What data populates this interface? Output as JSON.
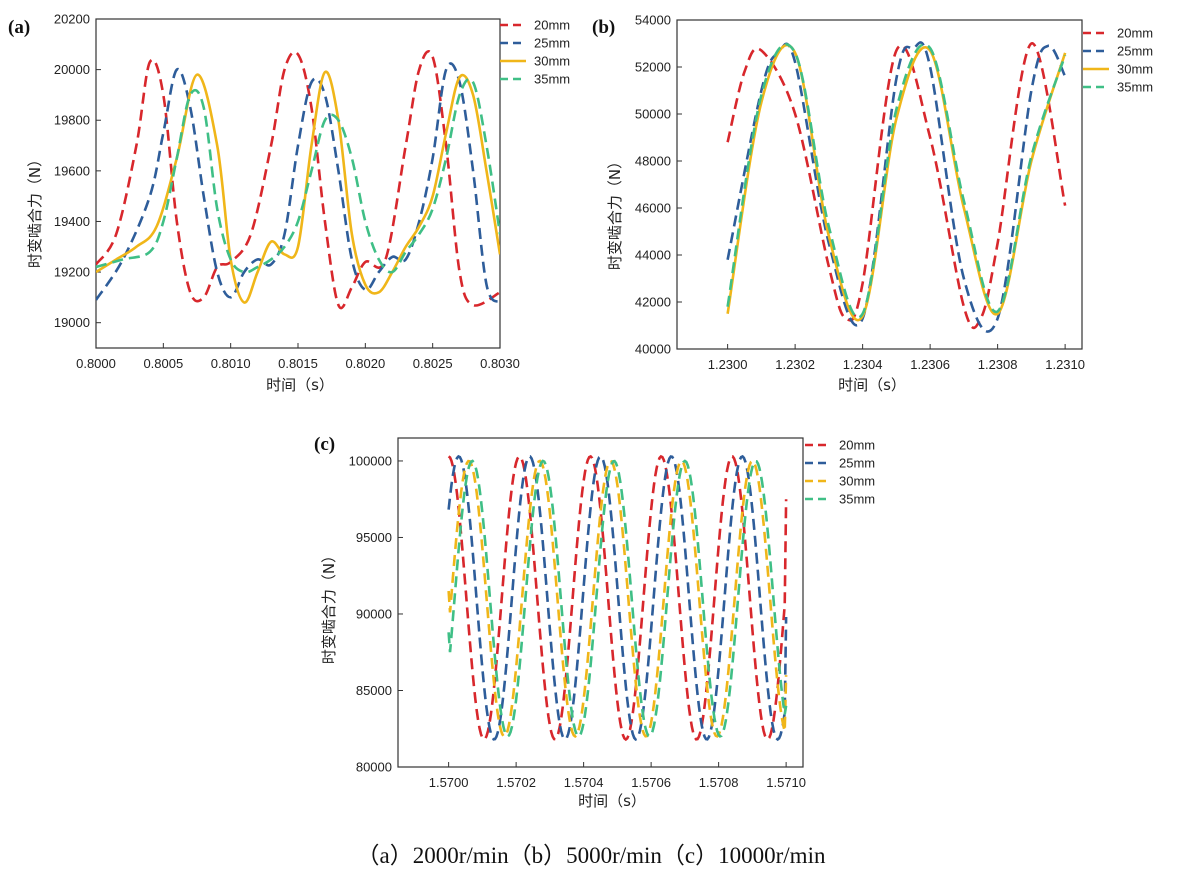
{
  "caption": "（a）2000r/min（b）5000r/min（c）10000r/min",
  "colors": {
    "20mm": "#d8272c",
    "25mm": "#2e5d9a",
    "30mm": "#f0b619",
    "35mm": "#3fbf86"
  },
  "chart_data": [
    {
      "type": "line",
      "panel_label": "(a)",
      "xlabel": "时间（s）",
      "ylabel": "时变啮合力（N）",
      "xlim": [
        0.8,
        0.803
      ],
      "ylim": [
        18900,
        20200
      ],
      "xticks": [
        "0.8000",
        "0.8005",
        "0.8010",
        "0.8015",
        "0.8020",
        "0.8025",
        "0.8030"
      ],
      "yticks": [
        "19000",
        "19200",
        "19400",
        "19600",
        "19800",
        "20000",
        "20200"
      ],
      "legend": [
        "20mm",
        "25mm",
        "30mm",
        "35mm"
      ],
      "series": [
        {
          "name": "20mm",
          "style": "dashed",
          "x": [
            0.8,
            0.80015,
            0.8003,
            0.8004,
            0.8005,
            0.8006,
            0.8007,
            0.8008,
            0.8009,
            0.801,
            0.80115,
            0.8013,
            0.8014,
            0.8015,
            0.8016,
            0.8017,
            0.8018,
            0.8019,
            0.802,
            0.80215,
            0.8023,
            0.8024,
            0.8025,
            0.8026,
            0.8027,
            0.8028,
            0.803
          ],
          "y": [
            19230,
            19350,
            19700,
            20030,
            19900,
            19400,
            19120,
            19100,
            19220,
            19240,
            19350,
            19700,
            20000,
            20060,
            19850,
            19400,
            19070,
            19140,
            19240,
            19250,
            19700,
            20000,
            20050,
            19700,
            19200,
            19070,
            19120
          ]
        },
        {
          "name": "25mm",
          "style": "dashed",
          "x": [
            0.8,
            0.8002,
            0.8004,
            0.8005,
            0.8006,
            0.8007,
            0.8008,
            0.8009,
            0.801,
            0.8011,
            0.8012,
            0.8013,
            0.8014,
            0.8015,
            0.8016,
            0.8017,
            0.8018,
            0.8019,
            0.802,
            0.8021,
            0.8022,
            0.8023,
            0.8024,
            0.8025,
            0.8026,
            0.8027,
            0.8028,
            0.8029,
            0.803
          ],
          "y": [
            19090,
            19250,
            19500,
            19750,
            20000,
            19850,
            19500,
            19200,
            19100,
            19200,
            19250,
            19230,
            19350,
            19700,
            19950,
            19900,
            19600,
            19250,
            19130,
            19200,
            19260,
            19250,
            19400,
            19650,
            20000,
            19950,
            19600,
            19150,
            19080
          ]
        },
        {
          "name": "30mm",
          "style": "solid",
          "x": [
            0.8,
            0.80015,
            0.8003,
            0.80045,
            0.8006,
            0.80075,
            0.8009,
            0.801,
            0.8011,
            0.8012,
            0.8013,
            0.8014,
            0.8015,
            0.8016,
            0.8017,
            0.8018,
            0.8019,
            0.802,
            0.8021,
            0.8022,
            0.8023,
            0.8024,
            0.8025,
            0.8026,
            0.8027,
            0.8028,
            0.8029,
            0.803
          ],
          "y": [
            19200,
            19250,
            19300,
            19380,
            19650,
            19980,
            19700,
            19250,
            19080,
            19200,
            19320,
            19270,
            19300,
            19700,
            19990,
            19800,
            19350,
            19150,
            19120,
            19200,
            19300,
            19380,
            19500,
            19750,
            19970,
            19900,
            19600,
            19270
          ]
        },
        {
          "name": "35mm",
          "style": "dashed",
          "x": [
            0.8,
            0.8002,
            0.8004,
            0.8005,
            0.8006,
            0.8007,
            0.8008,
            0.8009,
            0.801,
            0.8011,
            0.8012,
            0.8013,
            0.8014,
            0.8015,
            0.8016,
            0.8017,
            0.8018,
            0.8019,
            0.802,
            0.8021,
            0.8022,
            0.8023,
            0.8024,
            0.8025,
            0.8026,
            0.8027,
            0.8028,
            0.8029,
            0.803
          ],
          "y": [
            19220,
            19250,
            19280,
            19400,
            19650,
            19900,
            19850,
            19450,
            19250,
            19200,
            19220,
            19250,
            19300,
            19400,
            19600,
            19800,
            19800,
            19650,
            19400,
            19250,
            19200,
            19280,
            19350,
            19450,
            19650,
            19900,
            19950,
            19700,
            19350
          ]
        }
      ]
    },
    {
      "type": "line",
      "panel_label": "(b)",
      "xlabel": "时间（s）",
      "ylabel": "时变啮合力（N）",
      "xlim": [
        1.22985,
        1.23105
      ],
      "ylim": [
        40000,
        54000
      ],
      "xticks": [
        "1.2300",
        "1.2302",
        "1.2304",
        "1.2306",
        "1.2308",
        "1.2310"
      ],
      "yticks": [
        "40000",
        "42000",
        "44000",
        "46000",
        "48000",
        "50000",
        "52000",
        "54000"
      ],
      "legend": [
        "20mm",
        "25mm",
        "30mm",
        "35mm"
      ],
      "series": [
        {
          "name": "20mm",
          "style": "dashed",
          "x": [
            1.23,
            1.23005,
            1.2301,
            1.2302,
            1.2303,
            1.23035,
            1.2304,
            1.2305,
            1.2306,
            1.2307,
            1.23075,
            1.2308,
            1.2309,
            1.231
          ],
          "y": [
            48800,
            51800,
            52700,
            50000,
            43500,
            41300,
            42800,
            52700,
            49000,
            41800,
            41300,
            44500,
            53000,
            46100
          ]
        },
        {
          "name": "25mm",
          "style": "dashed",
          "x": [
            1.23,
            1.2301,
            1.23015,
            1.2302,
            1.2303,
            1.2304,
            1.2305,
            1.23055,
            1.2306,
            1.2307,
            1.2308,
            1.2309,
            1.23095,
            1.231
          ],
          "y": [
            43800,
            51000,
            52600,
            52200,
            44500,
            41300,
            51500,
            52800,
            52000,
            43000,
            41300,
            51000,
            52900,
            51600
          ]
        },
        {
          "name": "30mm",
          "style": "solid",
          "x": [
            1.23,
            1.2301,
            1.2302,
            1.2303,
            1.2304,
            1.2305,
            1.2306,
            1.2307,
            1.2308,
            1.2309,
            1.231
          ],
          "y": [
            41500,
            50500,
            52600,
            44800,
            41400,
            49800,
            52700,
            46000,
            41500,
            48000,
            52600
          ]
        },
        {
          "name": "35mm",
          "style": "dashed",
          "x": [
            1.23,
            1.2301,
            1.2302,
            1.2303,
            1.2304,
            1.2305,
            1.2306,
            1.2307,
            1.2308,
            1.2309,
            1.231
          ],
          "y": [
            41800,
            50800,
            52600,
            45200,
            41500,
            50200,
            52800,
            46300,
            41600,
            48200,
            52500
          ]
        }
      ]
    },
    {
      "type": "line",
      "panel_label": "(c)",
      "xlabel": "时间（s）",
      "ylabel": "时变啮合力（N）",
      "xlim": [
        1.56985,
        1.57105
      ],
      "ylim": [
        80000,
        101500
      ],
      "xticks": [
        "1.5700",
        "1.5702",
        "1.5704",
        "1.5706",
        "1.5708",
        "1.5710"
      ],
      "yticks": [
        "80000",
        "85000",
        "90000",
        "95000",
        "100000"
      ],
      "legend": [
        "20mm",
        "25mm",
        "30mm",
        "35mm"
      ],
      "series": [
        {
          "name": "20mm",
          "style": "sine",
          "amplitude": 9250,
          "offset": 91050,
          "period": 0.00021,
          "peak_x": 1.57,
          "x_range": [
            1.57,
            1.571
          ],
          "end_value": 97500
        },
        {
          "name": "25mm",
          "style": "sine",
          "amplitude": 9250,
          "offset": 91050,
          "period": 0.00021,
          "peak_x": 1.57003,
          "x_range": [
            1.57,
            1.571
          ],
          "end_value": 89800
        },
        {
          "name": "30mm",
          "style": "sine",
          "amplitude": 9000,
          "offset": 91000,
          "period": 0.00021,
          "peak_x": 1.57006,
          "x_range": [
            1.57,
            1.571
          ],
          "start_value": 91500,
          "end_value": 86000
        },
        {
          "name": "35mm",
          "style": "sine",
          "amplitude": 9000,
          "offset": 91000,
          "period": 0.00021,
          "peak_x": 1.57007,
          "x_range": [
            1.57,
            1.571
          ],
          "start_value": 88800,
          "end_value": 84000
        }
      ]
    }
  ]
}
